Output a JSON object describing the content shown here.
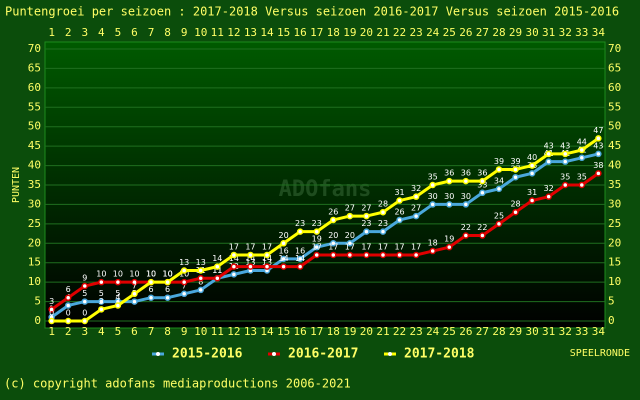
{
  "chart_data": {
    "type": "line",
    "title": "Puntengroei per seizoen : 2017-2018 Versus seizoen 2016-2017 Versus seizoen 2015-2016",
    "ylabel": "PUNTEN",
    "xlabel": "SPEELRONDE",
    "watermark": "ADOfans",
    "footer": "(c) copyright adofans mediaproductions 2006-2021",
    "x": [
      1,
      2,
      3,
      4,
      5,
      6,
      7,
      8,
      9,
      10,
      11,
      12,
      13,
      14,
      15,
      16,
      17,
      18,
      19,
      20,
      21,
      22,
      23,
      24,
      25,
      26,
      27,
      28,
      29,
      30,
      31,
      32,
      33,
      34
    ],
    "xlim": [
      0.6,
      34.4
    ],
    "xticks": [
      1,
      2,
      3,
      4,
      5,
      6,
      7,
      8,
      9,
      10,
      11,
      12,
      13,
      14,
      15,
      16,
      17,
      18,
      19,
      20,
      21,
      22,
      23,
      24,
      25,
      26,
      27,
      28,
      29,
      30,
      31,
      32,
      33,
      34
    ],
    "ylim": [
      -1.8,
      71.8
    ],
    "yticks": [
      0,
      5,
      10,
      15,
      20,
      25,
      30,
      35,
      40,
      45,
      50,
      55,
      60,
      65,
      70
    ],
    "grid": true,
    "series": [
      {
        "name": "2015-2016",
        "color": "#4aa8dc",
        "values": [
          1,
          4,
          5,
          5,
          5,
          5,
          6,
          6,
          7,
          8,
          11,
          12,
          13,
          13,
          16,
          16,
          19,
          20,
          20,
          23,
          23,
          26,
          27,
          30,
          30,
          30,
          33,
          34,
          37,
          38,
          41,
          41,
          42,
          43
        ]
      },
      {
        "name": "2016-2017",
        "color": "#e00000",
        "values": [
          3,
          6,
          9,
          10,
          10,
          10,
          10,
          10,
          10,
          11,
          11,
          14,
          14,
          14,
          14,
          14,
          17,
          17,
          17,
          17,
          17,
          17,
          17,
          18,
          19,
          22,
          22,
          25,
          28,
          31,
          32,
          35,
          35,
          38
        ]
      },
      {
        "name": "2017-2018",
        "color": "#ffff00",
        "values": [
          0,
          0,
          0,
          3,
          4,
          7,
          10,
          10,
          13,
          13,
          14,
          17,
          17,
          17,
          20,
          23,
          23,
          26,
          27,
          27,
          28,
          31,
          32,
          35,
          36,
          36,
          36,
          39,
          39,
          40,
          43,
          43,
          44,
          47
        ]
      }
    ]
  }
}
